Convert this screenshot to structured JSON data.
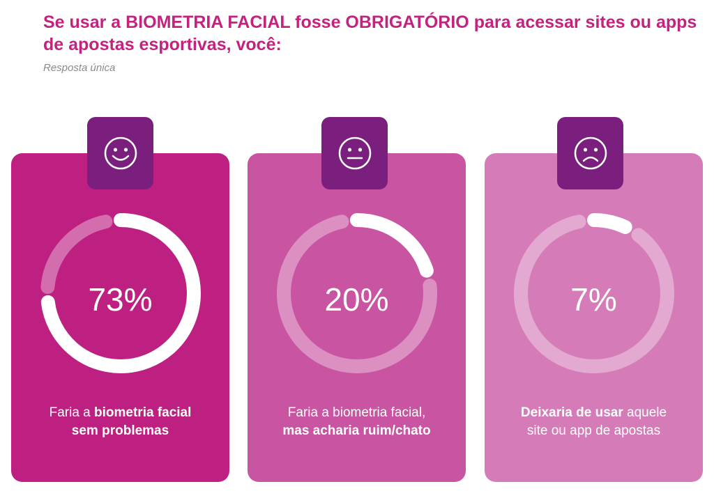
{
  "title": "Se usar a BIOMETRIA FACIAL fosse OBRIGATÓRIO para acessar sites ou apps de apostas esportivas, você:",
  "subtitle": "Resposta única",
  "chart_data": {
    "type": "donut",
    "title": "Se usar a BIOMETRIA FACIAL fosse OBRIGATÓRIO para acessar sites ou apps de apostas esportivas, você:",
    "subtitle": "Resposta única",
    "categories": [
      "Faria a biometria facial sem problemas",
      "Faria a biometria facial, mas acharia ruim/chato",
      "Deixaria de usar aquele site ou app de apostas"
    ],
    "values": [
      73,
      20,
      7
    ],
    "unit": "%"
  },
  "cards": [
    {
      "icon": "happy-face-icon",
      "value": 73,
      "percent_label": "73%",
      "line1_plain": "Faria a ",
      "line1_bold": "biometria facial",
      "line2_plain": "",
      "line2_bold": "sem problemas",
      "line2_after": ""
    },
    {
      "icon": "neutral-face-icon",
      "value": 20,
      "percent_label": "20%",
      "line1_plain": "Faria a biometria facial,",
      "line1_bold": "",
      "line2_plain": "",
      "line2_bold": "mas acharia ruim/chato",
      "line2_after": ""
    },
    {
      "icon": "sad-face-icon",
      "value": 7,
      "percent_label": "7%",
      "line1_plain": "",
      "line1_bold": "Deixaria de usar",
      "line1_after": " aquele",
      "line2_plain": "site ou app de apostas",
      "line2_bold": "",
      "line2_after": ""
    }
  ],
  "colors": {
    "title": "#c4227f",
    "badge": "#7a1f7e",
    "card_1": "#be2082",
    "card_2": "#c955a2",
    "card_3": "#d57cb8",
    "ring_fill": "#ffffff",
    "ring_track": "rgba(255,255,255,0.35)"
  }
}
